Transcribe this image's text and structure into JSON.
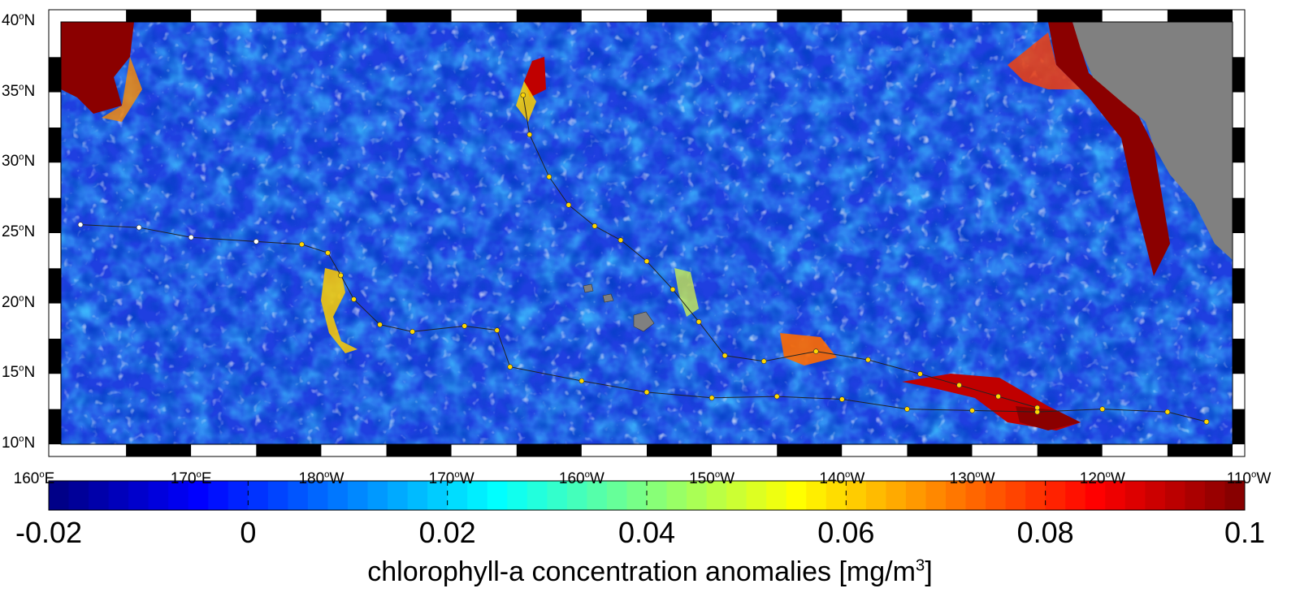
{
  "map": {
    "lat_axis": [
      {
        "deg": "40",
        "hemi": "N"
      },
      {
        "deg": "35",
        "hemi": "N"
      },
      {
        "deg": "30",
        "hemi": "N"
      },
      {
        "deg": "25",
        "hemi": "N"
      },
      {
        "deg": "20",
        "hemi": "N"
      },
      {
        "deg": "15",
        "hemi": "N"
      },
      {
        "deg": "10",
        "hemi": "N"
      }
    ],
    "lon_axis": [
      {
        "deg": "160",
        "hemi": "E"
      },
      {
        "deg": "170",
        "hemi": "E"
      },
      {
        "deg": "180",
        "hemi": "W"
      },
      {
        "deg": "170",
        "hemi": "W"
      },
      {
        "deg": "160",
        "hemi": "W"
      },
      {
        "deg": "150",
        "hemi": "W"
      },
      {
        "deg": "140",
        "hemi": "W"
      },
      {
        "deg": "130",
        "hemi": "W"
      },
      {
        "deg": "120",
        "hemi": "W"
      },
      {
        "deg": "110",
        "hemi": "W"
      }
    ],
    "extent": {
      "lon_west_E": 160,
      "lon_east_E": 250,
      "lat_south": 10,
      "lat_north": 40
    },
    "colors": {
      "land": "#808080",
      "ocean_base": "#1f3fe0",
      "missing": "#ffffff"
    },
    "land_masses": [
      "north-america-coast",
      "baja-california",
      "hawaiian-islands"
    ],
    "tracks": [
      {
        "name_visible": false,
        "points": [
          [
            161.5,
            25.6
          ],
          [
            166,
            25.4
          ],
          [
            170,
            24.7
          ],
          [
            175,
            24.4
          ],
          [
            178.5,
            24.2
          ],
          [
            180.5,
            23.6
          ],
          [
            181.5,
            22
          ],
          [
            182.5,
            20.3
          ],
          [
            184.5,
            18.5
          ],
          [
            187,
            18
          ],
          [
            191,
            18.4
          ],
          [
            193.5,
            18.1
          ],
          [
            194.5,
            15.5
          ],
          [
            200,
            14.5
          ],
          [
            205,
            13.7
          ],
          [
            210,
            13.3
          ],
          [
            215,
            13.4
          ],
          [
            220,
            13.2
          ],
          [
            225,
            12.5
          ],
          [
            230,
            12.4
          ],
          [
            235,
            12.3
          ],
          [
            240,
            12.5
          ],
          [
            245,
            12.3
          ],
          [
            248,
            11.6
          ]
        ]
      },
      {
        "name_visible": false,
        "points": [
          [
            195.5,
            34.8
          ],
          [
            196,
            32
          ],
          [
            197.5,
            29
          ],
          [
            199,
            27
          ],
          [
            201,
            25.5
          ],
          [
            203,
            24.5
          ],
          [
            205,
            23
          ],
          [
            207,
            21
          ],
          [
            209,
            18.7
          ],
          [
            211,
            16.3
          ],
          [
            214,
            15.9
          ],
          [
            218,
            16.6
          ],
          [
            222,
            16
          ],
          [
            226,
            15
          ],
          [
            229,
            14.2
          ],
          [
            232,
            13.4
          ],
          [
            235,
            12.6
          ]
        ]
      }
    ]
  },
  "colorbar": {
    "ticks": [
      "-0.02",
      "0",
      "0.02",
      "0.04",
      "0.06",
      "0.08",
      "0.1"
    ],
    "min": -0.02,
    "max": 0.1,
    "n_bins": 60,
    "title_prefix": "chlorophyll-a concentration anomalies [mg/m",
    "title_sup": "3",
    "title_suffix": "]"
  }
}
